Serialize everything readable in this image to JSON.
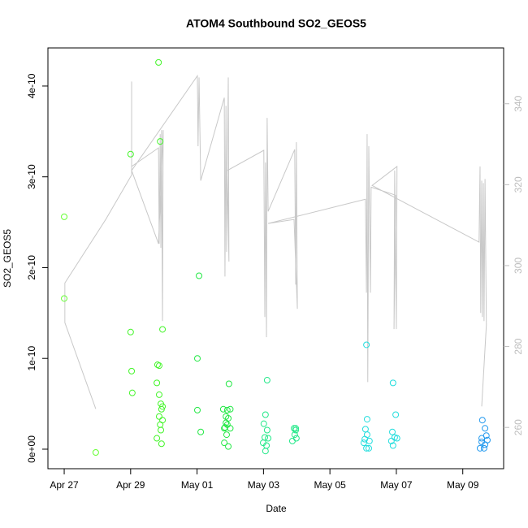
{
  "chart_data": {
    "type": "scatter",
    "title": "ATOM4 Southbound SO2_GEOS5",
    "x_label": "Date",
    "y_label": "SO2_GEOS5",
    "xlim": [
      -0.49,
      13.23
    ],
    "xticks": [
      {
        "value": 0,
        "label": "Apr 27"
      },
      {
        "value": 2,
        "label": "Apr 29"
      },
      {
        "value": 4,
        "label": "May 01"
      },
      {
        "value": 6,
        "label": "May 03"
      },
      {
        "value": 8,
        "label": "May 05"
      },
      {
        "value": 10,
        "label": "May 07"
      },
      {
        "value": 12,
        "label": "May 09"
      }
    ],
    "ylim": [
      -2.15e-11,
      4.42e-10
    ],
    "yticks": [
      {
        "value": 0,
        "label": "0e+00"
      },
      {
        "value": 1e-10,
        "label": "1e-10"
      },
      {
        "value": 2e-10,
        "label": "2e-10"
      },
      {
        "value": 3e-10,
        "label": "3e-10"
      },
      {
        "value": 4e-10,
        "label": "4e-10"
      }
    ],
    "y2lim": [
      249.8,
      353.8
    ],
    "y2ticks": [
      260,
      280,
      300,
      320,
      340
    ],
    "y2_color": "#bdbdbd",
    "series": [
      {
        "type": "line",
        "axis": "y2",
        "color": "#c8c8c8",
        "x": [
          0.95,
          0.02,
          0.02,
          1.25,
          2.03,
          2.03,
          2.03,
          2.84,
          2.86,
          2.89,
          2.91,
          2.93,
          2.96,
          2.98,
          2.84,
          2.03,
          4.01,
          4.03,
          4.06,
          4.11,
          4.82,
          4.84,
          4.87,
          4.89,
          4.94,
          4.96,
          4.91,
          6.01,
          6.04,
          6.06,
          6.09,
          6.11,
          6.14,
          6.94,
          6.97,
          6.99,
          7.02,
          6.92,
          6.14,
          9.07,
          9.1,
          9.12,
          9.14,
          9.17,
          9.22,
          9.24,
          9.98,
          9.93,
          9.95,
          10.0,
          10.02,
          9.27,
          12.49,
          12.52,
          12.54,
          12.57,
          12.59,
          12.62,
          12.64,
          12.67,
          12.71,
          12.57
        ],
        "values": [
          264.6,
          285.9,
          295.7,
          311.4,
          322.4,
          345.5,
          324.5,
          329.1,
          305.4,
          332.5,
          304.4,
          333.5,
          286.3,
          333.5,
          305.4,
          323.5,
          346.9,
          329.5,
          346.5,
          321.0,
          341.5,
          297.3,
          339.5,
          303.4,
          346.5,
          301.0,
          323.5,
          328.5,
          287.3,
          325.5,
          282.3,
          336.5,
          313.4,
          328.7,
          295.3,
          330.5,
          289.3,
          311.4,
          310.4,
          316.4,
          293.3,
          332.5,
          271.2,
          329.5,
          293.3,
          319.4,
          317.4,
          284.3,
          323.5,
          284.3,
          324.5,
          319.8,
          305.8,
          324.5,
          288.3,
          321.0,
          287.3,
          320.4,
          286.3,
          321.4,
          285.3,
          265.2
        ]
      },
      {
        "color": "#66ff33",
        "x": [
          0,
          0,
          0.95
        ],
        "values": [
          2.56e-10,
          1.66e-10,
          -3.6e-12
        ]
      },
      {
        "color": "#44f52a",
        "x": [
          2.0,
          2.0,
          2.03,
          2.05,
          2.84,
          2.89,
          2.96,
          2.81,
          2.86,
          2.79,
          2.86,
          2.91,
          2.96,
          2.93,
          2.86,
          2.96,
          2.89,
          2.91,
          2.79,
          2.93
        ],
        "values": [
          3.25e-10,
          1.29e-10,
          8.6e-11,
          6.2e-11,
          4.26e-10,
          3.39e-10,
          1.32e-10,
          9.3e-11,
          9.2e-11,
          7.3e-11,
          6e-11,
          5e-11,
          4.7e-11,
          4.4e-11,
          3.6e-11,
          3.2e-11,
          2.7e-11,
          2.1e-11,
          1.2e-11,
          6e-12
        ]
      },
      {
        "color": "#22e844",
        "x": [
          4.06,
          4.01,
          4.01,
          4.11,
          4.96,
          4.79,
          4.91,
          4.87,
          4.94,
          4.87,
          4.91,
          4.82,
          5.0,
          4.89,
          4.94,
          4.82,
          4.84,
          5.0
        ],
        "values": [
          1.91e-10,
          1e-10,
          4.3e-11,
          1.9e-11,
          7.2e-11,
          4.4e-11,
          4.3e-11,
          3.6e-11,
          3.4e-11,
          2.9e-11,
          2.7e-11,
          2.3e-11,
          2.3e-11,
          1.6e-11,
          3e-12,
          7e-12,
          2.4e-11,
          4.4e-11
        ]
      },
      {
        "color": "#22e888",
        "x": [
          6.11,
          6.06,
          6.01,
          6.11,
          6.04,
          6.14,
          5.99,
          6.09,
          6.06,
          6.92,
          6.97,
          6.94,
          6.99,
          6.87,
          6.97
        ],
        "values": [
          7.6e-11,
          3.8e-11,
          2.8e-11,
          2.1e-11,
          1.3e-11,
          1.2e-11,
          7e-12,
          4e-12,
          -2e-12,
          2.3e-11,
          2.1e-11,
          1.6e-11,
          1.2e-11,
          9e-12,
          2.3e-11
        ]
      },
      {
        "color": "#22dddd",
        "x": [
          9.1,
          9.12,
          9.07,
          9.12,
          9.05,
          9.19,
          9.1,
          9.17,
          9.02,
          9.9,
          9.98,
          9.88,
          9.95,
          9.9,
          10.02,
          9.85
        ],
        "values": [
          1.15e-10,
          3.3e-11,
          2.2e-11,
          1.6e-11,
          1.1e-11,
          9e-12,
          1e-12,
          1e-12,
          7e-12,
          7.3e-11,
          3.8e-11,
          1.9e-11,
          1.3e-11,
          4e-12,
          1.2e-11,
          9e-12
        ]
      },
      {
        "color": "#2299ee",
        "x": [
          12.59,
          12.67,
          12.71,
          12.57,
          12.67,
          12.52,
          12.64,
          12.57,
          12.74
        ],
        "values": [
          3.2e-11,
          2.3e-11,
          1.5e-11,
          8e-12,
          5e-12,
          1e-12,
          1e-12,
          1.2e-11,
          1e-11
        ]
      }
    ]
  }
}
